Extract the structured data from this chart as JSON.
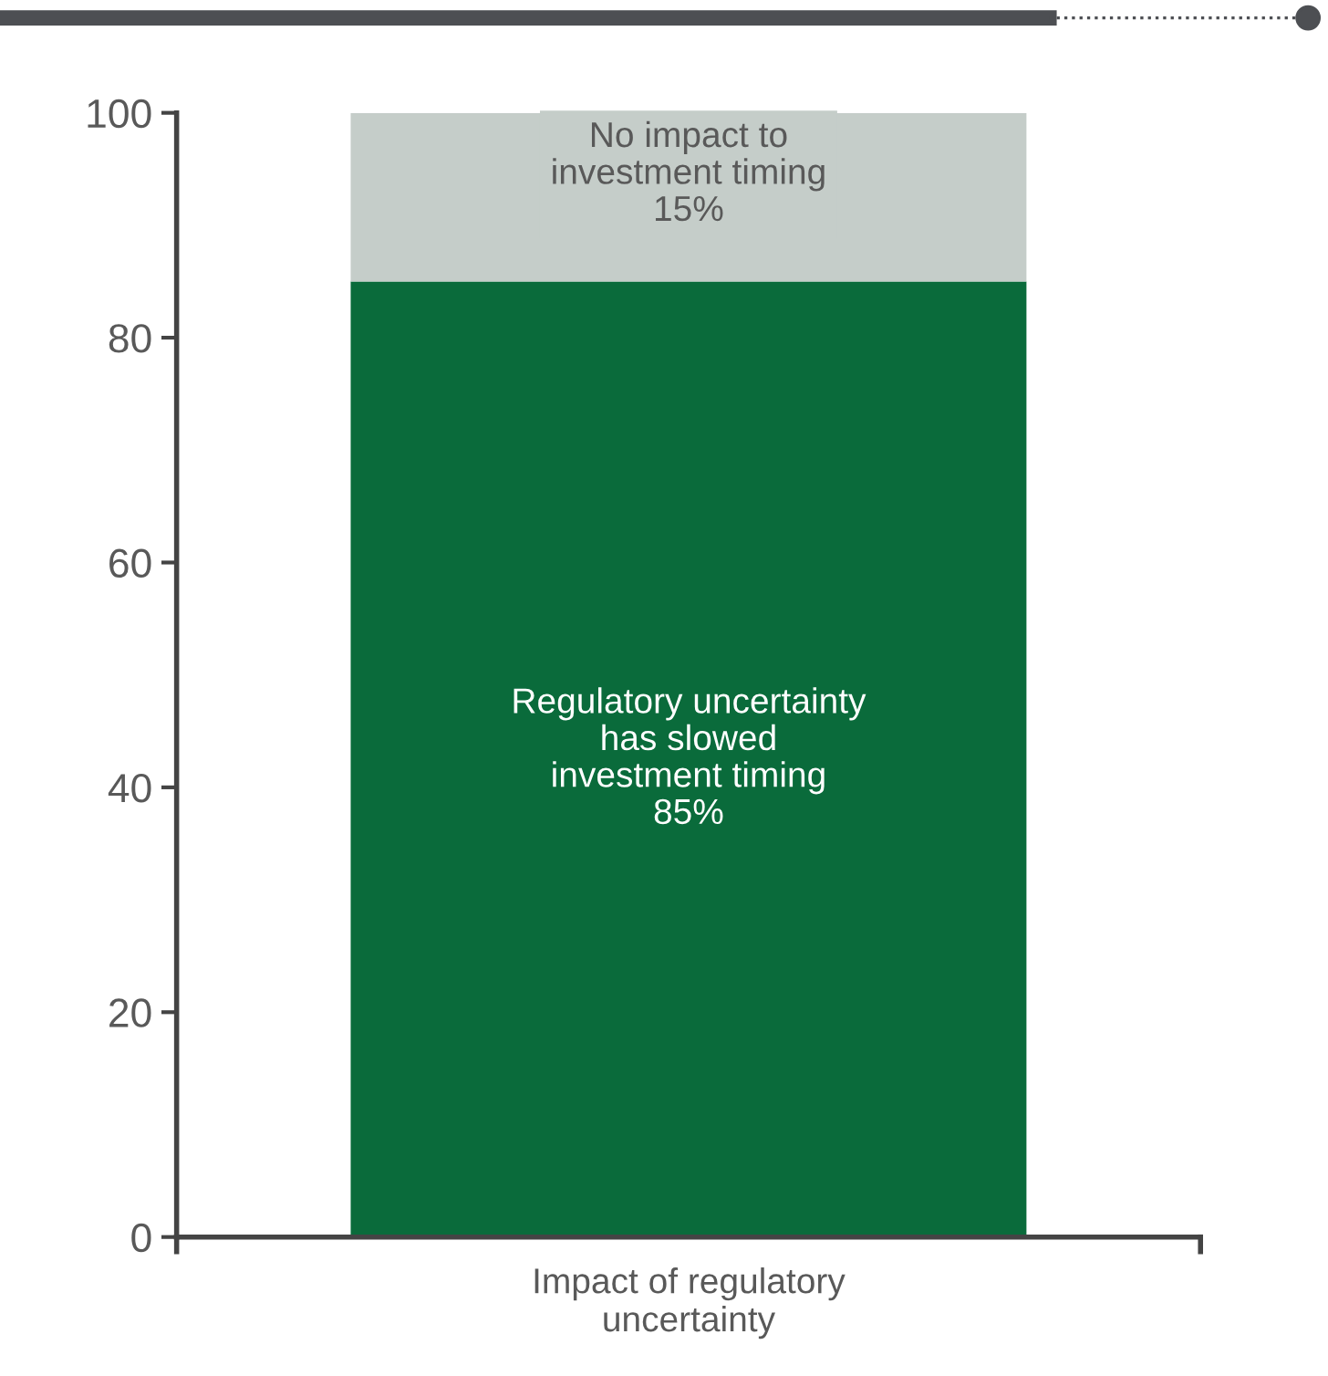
{
  "chart_data": {
    "type": "bar",
    "stacked": true,
    "categories": [
      "Impact of regulatory\nuncertainty"
    ],
    "series": [
      {
        "name": "Regulatory uncertainty\nhas slowed\ninvestment timing",
        "color": "#0a6b3b",
        "values": [
          85
        ],
        "value_labels": [
          "85%"
        ]
      },
      {
        "name": "No impact to\ninvestment timing",
        "color": "#c5cdc9",
        "values": [
          15
        ],
        "value_labels": [
          "15%"
        ]
      }
    ],
    "ylim": [
      0,
      100
    ],
    "yticks": [
      0,
      20,
      40,
      60,
      80,
      100
    ],
    "grid": false,
    "legend": false
  }
}
